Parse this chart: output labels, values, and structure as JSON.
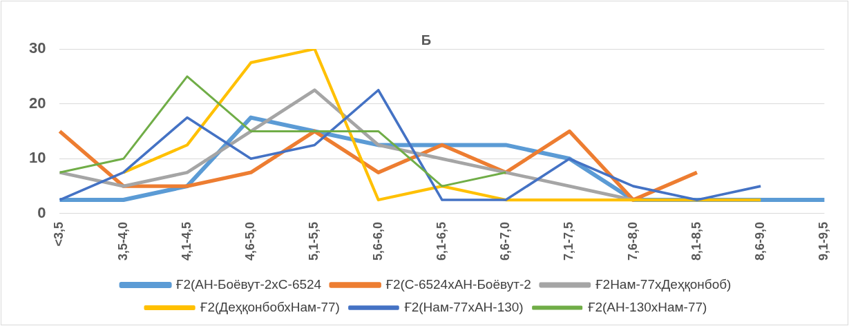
{
  "chart_data": {
    "type": "line",
    "title": "Б",
    "categories": [
      "<3,5",
      "3,5-4,0",
      "4,1-4,5",
      "4,6-5,0",
      "5,1-5,5",
      "5,6-6,0",
      "6,1-6,5",
      "6,6-7,0",
      "7,1-7,5",
      "7,6-8,0",
      "8,1-8,5",
      "8,6-9,0",
      "9,1-9,5"
    ],
    "series": [
      {
        "name": "Ғ2(АН-Боёвут-2хС-6524",
        "color": "#5b9bd5",
        "values": [
          2.5,
          2.5,
          5,
          17.5,
          15,
          12.5,
          12.5,
          12.5,
          10,
          2.5,
          2.5,
          2.5,
          2.5
        ]
      },
      {
        "name": "Ғ2(С-6524хАН-Боёвут-2",
        "color": "#ed7d31",
        "values": [
          15,
          5,
          5,
          7.5,
          15,
          7.5,
          12.5,
          7.5,
          15,
          2.5,
          7.5,
          null,
          null
        ]
      },
      {
        "name": "Ғ2Нам-77хДеҳқонбоб)",
        "color": "#a5a5a5",
        "values": [
          7.5,
          5,
          7.5,
          15,
          22.5,
          12.5,
          10,
          7.5,
          5,
          2.5,
          null,
          null,
          null
        ]
      },
      {
        "name": "Ғ2(ДеҳқонбобхНам-77)",
        "color": "#ffc000",
        "values": [
          null,
          7.5,
          12.5,
          27.5,
          30,
          2.5,
          5,
          2.5,
          2.5,
          2.5,
          2.5,
          2.5,
          null
        ]
      },
      {
        "name": "Ғ2(Нам-77хАН-130)",
        "color": "#4472c4",
        "values": [
          2.5,
          7.5,
          17.5,
          10,
          12.5,
          22.5,
          2.5,
          2.5,
          10,
          5,
          2.5,
          5,
          null
        ]
      },
      {
        "name": "Ғ2(АН-130хНам-77)",
        "color": "#70ad47",
        "values": [
          7.5,
          10,
          25,
          15,
          15,
          15,
          5,
          7.5,
          null,
          null,
          null,
          null,
          null
        ]
      }
    ],
    "ylim": [
      0,
      30
    ],
    "yticks": [
      0,
      10,
      20,
      30
    ],
    "grid": "y",
    "legend": "bottom",
    "marker": "none",
    "line_style": "solid"
  }
}
